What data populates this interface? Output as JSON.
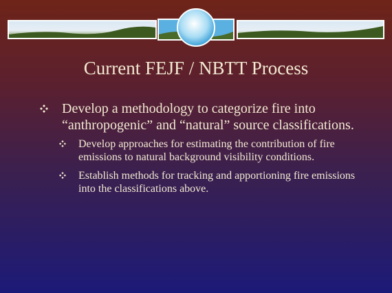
{
  "title": "Current FEJF / NBTT Process",
  "bullets": [
    {
      "level": 1,
      "text": "Develop a methodology to categorize fire into “anthropogenic” and “natural” source classifications."
    },
    {
      "level": 2,
      "text": "Develop approaches for estimating the contribution of fire emissions to natural background visibility conditions."
    },
    {
      "level": 2,
      "text": "Establish methods for tracking and apportioning fire emissions into the classifications above."
    }
  ]
}
